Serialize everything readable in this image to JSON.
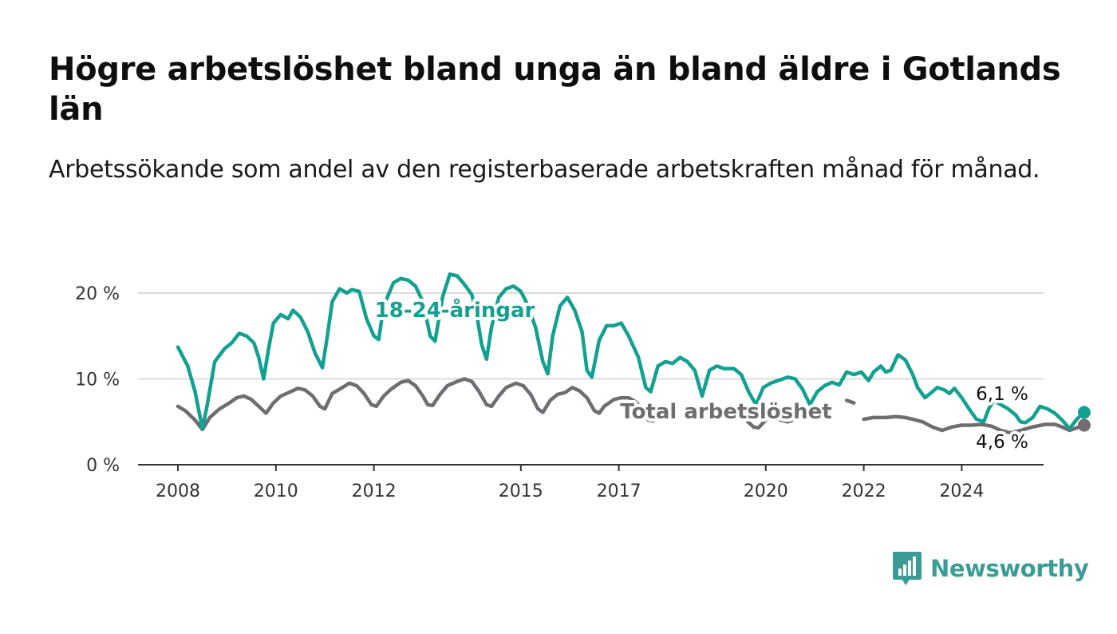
{
  "title": "Högre arbetslöshet bland unga än bland äldre i Gotlands län",
  "subtitle": "Arbetssökande som andel av den registerbaserade arbetskraften månad för månad.",
  "logo": {
    "text": "Newsworthy",
    "icon": "bar-chart-icon"
  },
  "colors": {
    "youth": "#12a091",
    "total": "#706c72",
    "grid": "#dcdcdc",
    "axis": "#333333",
    "brand": "#3a9c95"
  },
  "chart_data": {
    "type": "line",
    "x_unit": "year",
    "ylim": [
      0,
      22.5
    ],
    "xlim": [
      2008,
      2025.8
    ],
    "x_ticks": [
      {
        "value": 2008,
        "label": "2008"
      },
      {
        "value": 2010,
        "label": "2010"
      },
      {
        "value": 2012,
        "label": "2012"
      },
      {
        "value": 2015,
        "label": "2015"
      },
      {
        "value": 2017,
        "label": "2017"
      },
      {
        "value": 2020,
        "label": "2020"
      },
      {
        "value": 2022,
        "label": "2022"
      },
      {
        "value": 2024,
        "label": "2024"
      }
    ],
    "y_ticks": [
      {
        "value": 0,
        "label": "0 %"
      },
      {
        "value": 10,
        "label": "10 %"
      },
      {
        "value": 20,
        "label": "20 %"
      }
    ],
    "grid": true,
    "legend": "none",
    "series": [
      {
        "name": "18-24-åringar",
        "label": "18-24-åringar",
        "end_label": "6,1 %",
        "end_value": 6.1,
        "points": [
          [
            2008.0,
            13.7
          ],
          [
            2008.2,
            11.5
          ],
          [
            2008.35,
            8.5
          ],
          [
            2008.5,
            4.2
          ],
          [
            2008.6,
            7.0
          ],
          [
            2008.75,
            12.0
          ],
          [
            2008.95,
            13.5
          ],
          [
            2009.1,
            14.2
          ],
          [
            2009.25,
            15.3
          ],
          [
            2009.4,
            15.0
          ],
          [
            2009.55,
            14.2
          ],
          [
            2009.65,
            12.5
          ],
          [
            2009.75,
            10.0
          ],
          [
            2009.85,
            13.5
          ],
          [
            2009.95,
            16.5
          ],
          [
            2010.1,
            17.5
          ],
          [
            2010.25,
            17.0
          ],
          [
            2010.35,
            18.0
          ],
          [
            2010.5,
            17.2
          ],
          [
            2010.65,
            15.5
          ],
          [
            2010.8,
            13.0
          ],
          [
            2010.95,
            11.3
          ],
          [
            2011.05,
            15.0
          ],
          [
            2011.15,
            19.0
          ],
          [
            2011.3,
            20.5
          ],
          [
            2011.45,
            20.0
          ],
          [
            2011.55,
            20.4
          ],
          [
            2011.7,
            20.2
          ],
          [
            2011.85,
            17.0
          ],
          [
            2012.0,
            15.0
          ],
          [
            2012.1,
            14.6
          ],
          [
            2012.2,
            18.5
          ],
          [
            2012.4,
            21.2
          ],
          [
            2012.55,
            21.7
          ],
          [
            2012.7,
            21.5
          ],
          [
            2012.85,
            20.8
          ],
          [
            2013.0,
            19.0
          ],
          [
            2013.15,
            15.0
          ],
          [
            2013.25,
            14.4
          ],
          [
            2013.4,
            19.5
          ],
          [
            2013.55,
            22.2
          ],
          [
            2013.7,
            22.0
          ],
          [
            2013.85,
            21.0
          ],
          [
            2014.0,
            19.8
          ],
          [
            2014.1,
            17.5
          ],
          [
            2014.2,
            14.0
          ],
          [
            2014.3,
            12.3
          ],
          [
            2014.4,
            16.0
          ],
          [
            2014.55,
            19.5
          ],
          [
            2014.7,
            20.5
          ],
          [
            2014.85,
            20.8
          ],
          [
            2015.0,
            20.2
          ],
          [
            2015.15,
            18.5
          ],
          [
            2015.3,
            16.0
          ],
          [
            2015.45,
            12.0
          ],
          [
            2015.55,
            10.6
          ],
          [
            2015.65,
            15.0
          ],
          [
            2015.8,
            18.5
          ],
          [
            2015.95,
            19.5
          ],
          [
            2016.1,
            18.0
          ],
          [
            2016.25,
            15.5
          ],
          [
            2016.35,
            11.0
          ],
          [
            2016.45,
            10.2
          ],
          [
            2016.6,
            14.5
          ],
          [
            2016.75,
            16.2
          ],
          [
            2016.9,
            16.2
          ],
          [
            2017.05,
            16.5
          ],
          [
            2017.2,
            15.0
          ],
          [
            2017.4,
            12.5
          ],
          [
            2017.55,
            9.0
          ],
          [
            2017.65,
            8.5
          ],
          [
            2017.8,
            11.5
          ],
          [
            2017.95,
            12.0
          ],
          [
            2018.1,
            11.8
          ],
          [
            2018.25,
            12.5
          ],
          [
            2018.4,
            12.0
          ],
          [
            2018.55,
            11.0
          ],
          [
            2018.7,
            8.0
          ],
          [
            2018.85,
            11.0
          ],
          [
            2019.0,
            11.5
          ],
          [
            2019.15,
            11.2
          ],
          [
            2019.35,
            11.2
          ],
          [
            2019.5,
            10.5
          ],
          [
            2019.65,
            8.5
          ],
          [
            2019.8,
            7.0
          ],
          [
            2019.95,
            9.0
          ],
          [
            2020.1,
            9.5
          ],
          [
            2020.25,
            9.8
          ],
          [
            2020.45,
            10.2
          ],
          [
            2020.6,
            10.0
          ],
          [
            2020.75,
            8.8
          ],
          [
            2020.9,
            7.0
          ],
          [
            2021.05,
            8.5
          ],
          [
            2021.2,
            9.2
          ],
          [
            2021.35,
            9.6
          ],
          [
            2021.5,
            9.3
          ],
          [
            2021.65,
            10.8
          ],
          [
            2021.8,
            10.5
          ],
          [
            2021.95,
            10.8
          ],
          [
            2022.1,
            9.8
          ],
          [
            2022.2,
            10.8
          ],
          [
            2022.35,
            11.5
          ],
          [
            2022.45,
            10.8
          ],
          [
            2022.55,
            11.0
          ],
          [
            2022.7,
            12.8
          ],
          [
            2022.85,
            12.2
          ],
          [
            2023.0,
            10.5
          ],
          [
            2023.1,
            9.0
          ],
          [
            2023.25,
            7.8
          ],
          [
            2023.4,
            8.5
          ],
          [
            2023.5,
            9.0
          ],
          [
            2023.65,
            8.7
          ],
          [
            2023.75,
            8.3
          ],
          [
            2023.85,
            8.9
          ],
          [
            2024.0,
            7.8
          ],
          [
            2024.15,
            6.5
          ],
          [
            2024.3,
            5.3
          ],
          [
            2024.45,
            5.0
          ],
          [
            2024.55,
            6.5
          ],
          [
            2024.65,
            7.5
          ],
          [
            2024.8,
            7.0
          ],
          [
            2024.95,
            6.5
          ],
          [
            2025.1,
            5.8
          ],
          [
            2025.2,
            5.0
          ],
          [
            2025.3,
            4.9
          ],
          [
            2025.45,
            5.5
          ],
          [
            2025.6,
            6.8
          ],
          [
            2025.75,
            6.5
          ],
          [
            2025.9,
            6.0
          ],
          [
            2026.05,
            5.2
          ],
          [
            2026.2,
            4.2
          ],
          [
            2026.35,
            5.3
          ],
          [
            2026.5,
            6.1
          ]
        ]
      },
      {
        "name": "Total arbetslöshet",
        "label": "Total arbetslöshet",
        "end_label": "4,6 %",
        "end_value": 4.6,
        "points": [
          [
            2008.0,
            6.8
          ],
          [
            2008.15,
            6.3
          ],
          [
            2008.35,
            5.2
          ],
          [
            2008.5,
            4.1
          ],
          [
            2008.65,
            5.5
          ],
          [
            2008.85,
            6.5
          ],
          [
            2009.05,
            7.2
          ],
          [
            2009.2,
            7.8
          ],
          [
            2009.35,
            8.0
          ],
          [
            2009.5,
            7.6
          ],
          [
            2009.65,
            6.8
          ],
          [
            2009.8,
            6.0
          ],
          [
            2009.95,
            7.2
          ],
          [
            2010.1,
            8.0
          ],
          [
            2010.3,
            8.5
          ],
          [
            2010.45,
            8.9
          ],
          [
            2010.6,
            8.7
          ],
          [
            2010.75,
            8.0
          ],
          [
            2010.9,
            6.8
          ],
          [
            2011.0,
            6.5
          ],
          [
            2011.15,
            8.3
          ],
          [
            2011.3,
            8.8
          ],
          [
            2011.5,
            9.5
          ],
          [
            2011.65,
            9.2
          ],
          [
            2011.8,
            8.3
          ],
          [
            2011.95,
            7.0
          ],
          [
            2012.05,
            6.8
          ],
          [
            2012.2,
            8.0
          ],
          [
            2012.35,
            8.8
          ],
          [
            2012.55,
            9.6
          ],
          [
            2012.7,
            9.8
          ],
          [
            2012.85,
            9.2
          ],
          [
            2013.0,
            8.0
          ],
          [
            2013.1,
            7.0
          ],
          [
            2013.2,
            6.9
          ],
          [
            2013.35,
            8.2
          ],
          [
            2013.5,
            9.2
          ],
          [
            2013.7,
            9.7
          ],
          [
            2013.85,
            10.0
          ],
          [
            2014.0,
            9.7
          ],
          [
            2014.15,
            8.5
          ],
          [
            2014.3,
            7.0
          ],
          [
            2014.4,
            6.8
          ],
          [
            2014.55,
            8.0
          ],
          [
            2014.7,
            9.0
          ],
          [
            2014.9,
            9.5
          ],
          [
            2015.05,
            9.2
          ],
          [
            2015.2,
            8.2
          ],
          [
            2015.35,
            6.5
          ],
          [
            2015.45,
            6.1
          ],
          [
            2015.6,
            7.5
          ],
          [
            2015.75,
            8.2
          ],
          [
            2015.9,
            8.4
          ],
          [
            2016.05,
            9.0
          ],
          [
            2016.2,
            8.6
          ],
          [
            2016.35,
            7.8
          ],
          [
            2016.5,
            6.3
          ],
          [
            2016.6,
            6.0
          ],
          [
            2016.7,
            6.8
          ],
          [
            2016.9,
            7.6
          ],
          [
            2017.05,
            7.8
          ],
          [
            2017.2,
            7.8
          ],
          [
            2017.35,
            7.3
          ],
          [
            2017.5,
            6.3
          ],
          [
            2017.6,
            5.2
          ],
          [
            2017.7,
            5.1
          ],
          [
            2017.85,
            6.2
          ],
          [
            2018.0,
            6.5
          ],
          [
            2018.15,
            6.6
          ]
        ],
        "segments": [
          [
            [
              2017.85,
              6.2
            ],
            [
              2018.0,
              6.5
            ],
            [
              2018.15,
              6.6
            ]
          ],
          [
            [
              2018.9,
              6.3
            ],
            [
              2019.0,
              6.0
            ],
            [
              2019.15,
              6.5
            ]
          ],
          [
            [
              2019.45,
              6.0
            ],
            [
              2019.6,
              5.2
            ],
            [
              2019.75,
              4.4
            ],
            [
              2019.85,
              4.3
            ],
            [
              2020.0,
              5.2
            ],
            [
              2020.1,
              5.9
            ]
          ],
          [
            [
              2020.3,
              5.2
            ],
            [
              2020.45,
              5.0
            ],
            [
              2020.6,
              5.3
            ]
          ],
          [
            [
              2021.0,
              5.9
            ],
            [
              2021.15,
              5.5
            ],
            [
              2021.3,
              5.3
            ]
          ],
          [
            [
              2021.65,
              7.5
            ],
            [
              2021.8,
              7.2
            ]
          ],
          [
            [
              2022.0,
              5.3
            ],
            [
              2022.2,
              5.5
            ],
            [
              2022.45,
              5.5
            ],
            [
              2022.65,
              5.6
            ],
            [
              2022.85,
              5.5
            ],
            [
              2023.0,
              5.3
            ]
          ],
          [
            [
              2023.0,
              5.3
            ],
            [
              2023.2,
              5.0
            ],
            [
              2023.4,
              4.4
            ],
            [
              2023.6,
              4.0
            ],
            [
              2023.8,
              4.4
            ],
            [
              2024.0,
              4.6
            ],
            [
              2024.2,
              4.6
            ],
            [
              2024.4,
              4.7
            ],
            [
              2024.6,
              4.5
            ],
            [
              2024.8,
              4.0
            ],
            [
              2025.0,
              3.7
            ],
            [
              2025.2,
              4.0
            ],
            [
              2025.45,
              4.4
            ],
            [
              2025.7,
              4.7
            ],
            [
              2025.9,
              4.7
            ],
            [
              2026.05,
              4.4
            ],
            [
              2026.2,
              4.0
            ],
            [
              2026.35,
              4.3
            ],
            [
              2026.5,
              4.6
            ]
          ]
        ]
      }
    ]
  }
}
